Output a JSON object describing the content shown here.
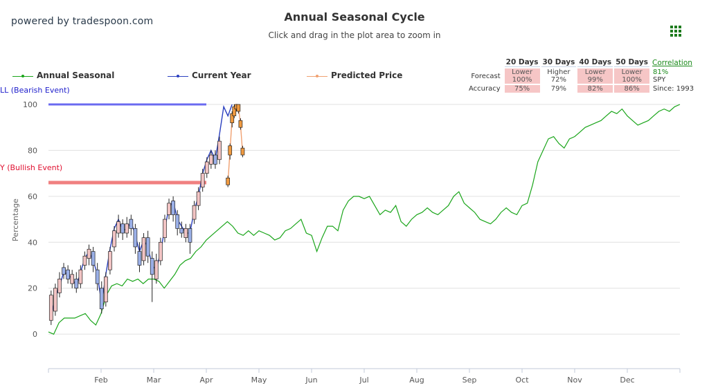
{
  "brand": "powered by tradespoon.com",
  "menu_icon": "grid-menu-icon",
  "colors": {
    "seasonal": "#1aa51a",
    "current": "#2a3fbf",
    "predicted": "#f0a070",
    "bear_line": "#6a6af0",
    "bull_line": "#f08080",
    "candle_up": "#f2c4c4",
    "candle_down": "#9bb0e8",
    "candle_pred": "#f09a40"
  },
  "forecast_table": {
    "headers": [
      "20 Days",
      "30 Days",
      "40 Days",
      "50 Days"
    ],
    "correlation_label": "Correlation",
    "forecast_label": "Forecast",
    "accuracy_label": "Accuracy",
    "forecast": [
      {
        "dir": "Lower",
        "pct": "100%"
      },
      {
        "dir": "Higher",
        "pct": "72%"
      },
      {
        "dir": "Lower",
        "pct": "99%"
      },
      {
        "dir": "Lower",
        "pct": "100%"
      }
    ],
    "accuracy": [
      "75%",
      "79%",
      "82%",
      "86%"
    ],
    "correlation_value": "81%",
    "symbol": "SPY",
    "since": "Since: 1993"
  },
  "events": {
    "bear_label": "LL (Bearish Event)",
    "bull_label": "Y (Bullish Event)"
  },
  "chart_data": {
    "type": "line",
    "title": "Annual Seasonal Cycle",
    "subtitle": "Click and drag in the plot area to zoom in",
    "ylabel": "Percentage",
    "xlabel": "",
    "ylim": [
      -15,
      100
    ],
    "yticks": [
      0,
      20,
      40,
      60,
      80,
      100
    ],
    "x_categories": [
      "Feb",
      "Mar",
      "Apr",
      "May",
      "Jun",
      "Jul",
      "Aug",
      "Sep",
      "Oct",
      "Nov",
      "Dec"
    ],
    "legend": [
      "Annual Seasonal",
      "Current Year",
      "Predicted Price"
    ],
    "grid": true,
    "series": [
      {
        "name": "Annual Seasonal",
        "x": [
          0.0,
          0.1,
          0.2,
          0.3,
          0.4,
          0.5,
          0.6,
          0.7,
          0.8,
          0.9,
          1.0,
          1.1,
          1.2,
          1.3,
          1.4,
          1.5,
          1.6,
          1.7,
          1.8,
          1.9,
          2.0,
          2.1,
          2.2,
          2.3,
          2.4,
          2.5,
          2.6,
          2.7,
          2.8,
          2.9,
          3.0,
          3.1,
          3.2,
          3.3,
          3.4,
          3.5,
          3.6,
          3.7,
          3.8,
          3.9,
          4.0,
          4.1,
          4.2,
          4.3,
          4.4,
          4.5,
          4.6,
          4.7,
          4.8,
          4.9,
          5.0,
          5.1,
          5.2,
          5.3,
          5.4,
          5.5,
          5.6,
          5.7,
          5.8,
          5.9,
          6.0,
          6.1,
          6.2,
          6.3,
          6.4,
          6.5,
          6.6,
          6.7,
          6.8,
          6.9,
          7.0,
          7.1,
          7.2,
          7.3,
          7.4,
          7.5,
          7.6,
          7.7,
          7.8,
          7.9,
          8.0,
          8.1,
          8.2,
          8.3,
          8.4,
          8.5,
          8.6,
          8.7,
          8.8,
          8.9,
          9.0,
          9.1,
          9.2,
          9.3,
          9.4,
          9.5,
          9.6,
          9.7,
          9.8,
          9.9,
          10.0,
          10.1,
          10.2,
          10.3,
          10.4,
          10.5,
          10.6,
          10.7,
          10.8,
          10.9,
          11.0,
          11.1,
          11.2,
          11.3,
          11.4,
          11.5,
          11.6,
          11.7,
          11.8,
          11.9,
          12.0
        ],
        "values": [
          1,
          0,
          5,
          7,
          7,
          7,
          8,
          9,
          6,
          4,
          9,
          17,
          21,
          22,
          21,
          24,
          23,
          24,
          22,
          24,
          24,
          23,
          20,
          23,
          26,
          30,
          32,
          33,
          36,
          38,
          41,
          43,
          45,
          47,
          49,
          47,
          44,
          43,
          45,
          43,
          45,
          44,
          43,
          41,
          42,
          45,
          46,
          48,
          50,
          44,
          43,
          36,
          42,
          47,
          47,
          45,
          54,
          58,
          60,
          60,
          59,
          60,
          56,
          52,
          54,
          53,
          56,
          49,
          47,
          50,
          52,
          53,
          55,
          53,
          52,
          54,
          56,
          60,
          62,
          57,
          55,
          53,
          50,
          49,
          48,
          50,
          53,
          55,
          53,
          52,
          56,
          57,
          65,
          75,
          80,
          85,
          86,
          83,
          81,
          85,
          86,
          88,
          90,
          91,
          92,
          93,
          95,
          97,
          96,
          98,
          95,
          93,
          91,
          92,
          93,
          95,
          97,
          98,
          97,
          99,
          100
        ]
      },
      {
        "name": "Current Year",
        "x": [
          0.05,
          0.13,
          0.21,
          0.29,
          0.37,
          0.45,
          0.53,
          0.61,
          0.69,
          0.77,
          0.85,
          0.93,
          1.01,
          1.09,
          1.17,
          1.25,
          1.33,
          1.41,
          1.49,
          1.57,
          1.65,
          1.73,
          1.81,
          1.89,
          1.97,
          2.05,
          2.13,
          2.21,
          2.29,
          2.37,
          2.45,
          2.53,
          2.61,
          2.69,
          2.77,
          2.85,
          2.93,
          3.01,
          3.09,
          3.17,
          3.25,
          3.33,
          3.41,
          3.49
        ],
        "values": [
          7,
          16,
          21,
          27,
          26,
          24,
          21,
          27,
          33,
          36,
          32,
          26,
          13,
          26,
          37,
          46,
          50,
          45,
          46,
          49,
          43,
          36,
          41,
          38,
          30,
          28,
          36,
          46,
          55,
          58,
          50,
          47,
          44,
          44,
          54,
          60,
          70,
          76,
          80,
          76,
          87,
          99,
          95,
          100
        ]
      },
      {
        "name": "Predicted Price",
        "x": [
          3.41,
          3.45,
          3.49,
          3.53,
          3.57,
          3.61,
          3.65,
          3.69
        ],
        "values": [
          66,
          80,
          94,
          98,
          100,
          99,
          91,
          79
        ]
      }
    ],
    "candles": [
      {
        "x": 0.05,
        "open": 6,
        "close": 17,
        "high": 19,
        "low": 4,
        "up": true
      },
      {
        "x": 0.13,
        "open": 10,
        "close": 20,
        "high": 22,
        "low": 8,
        "up": true
      },
      {
        "x": 0.21,
        "open": 18,
        "close": 24,
        "high": 27,
        "low": 16,
        "up": true
      },
      {
        "x": 0.29,
        "open": 29,
        "close": 26,
        "high": 31,
        "low": 24,
        "up": false
      },
      {
        "x": 0.37,
        "open": 28,
        "close": 24,
        "high": 30,
        "low": 22,
        "up": false
      },
      {
        "x": 0.45,
        "open": 22,
        "close": 26,
        "high": 28,
        "low": 20,
        "up": true
      },
      {
        "x": 0.53,
        "open": 24,
        "close": 20,
        "high": 27,
        "low": 18,
        "up": false
      },
      {
        "x": 0.61,
        "open": 22,
        "close": 28,
        "high": 30,
        "low": 20,
        "up": true
      },
      {
        "x": 0.69,
        "open": 30,
        "close": 34,
        "high": 36,
        "low": 28,
        "up": true
      },
      {
        "x": 0.77,
        "open": 33,
        "close": 37,
        "high": 39,
        "low": 30,
        "up": true
      },
      {
        "x": 0.85,
        "open": 36,
        "close": 30,
        "high": 38,
        "low": 27,
        "up": false
      },
      {
        "x": 0.93,
        "open": 28,
        "close": 22,
        "high": 31,
        "low": 19,
        "up": false
      },
      {
        "x": 1.01,
        "open": 20,
        "close": 11,
        "high": 23,
        "low": 9,
        "up": false
      },
      {
        "x": 1.09,
        "open": 14,
        "close": 25,
        "high": 27,
        "low": 12,
        "up": true
      },
      {
        "x": 1.17,
        "open": 28,
        "close": 36,
        "high": 38,
        "low": 26,
        "up": true
      },
      {
        "x": 1.25,
        "open": 38,
        "close": 45,
        "high": 47,
        "low": 36,
        "up": true
      },
      {
        "x": 1.33,
        "open": 44,
        "close": 49,
        "high": 52,
        "low": 42,
        "up": true
      },
      {
        "x": 1.41,
        "open": 48,
        "close": 44,
        "high": 50,
        "low": 41,
        "up": false
      },
      {
        "x": 1.49,
        "open": 44,
        "close": 48,
        "high": 51,
        "low": 42,
        "up": true
      },
      {
        "x": 1.57,
        "open": 50,
        "close": 46,
        "high": 52,
        "low": 43,
        "up": false
      },
      {
        "x": 1.65,
        "open": 46,
        "close": 38,
        "high": 48,
        "low": 35,
        "up": false
      },
      {
        "x": 1.73,
        "open": 36,
        "close": 30,
        "high": 40,
        "low": 27,
        "up": false
      },
      {
        "x": 1.81,
        "open": 32,
        "close": 42,
        "high": 44,
        "low": 30,
        "up": true
      },
      {
        "x": 1.89,
        "open": 42,
        "close": 34,
        "high": 45,
        "low": 31,
        "up": false
      },
      {
        "x": 1.97,
        "open": 33,
        "close": 26,
        "high": 36,
        "low": 14,
        "up": false
      },
      {
        "x": 2.05,
        "open": 24,
        "close": 32,
        "high": 35,
        "low": 22,
        "up": true
      },
      {
        "x": 2.13,
        "open": 32,
        "close": 40,
        "high": 42,
        "low": 30,
        "up": true
      },
      {
        "x": 2.21,
        "open": 42,
        "close": 50,
        "high": 52,
        "low": 40,
        "up": true
      },
      {
        "x": 2.29,
        "open": 52,
        "close": 57,
        "high": 59,
        "low": 50,
        "up": true
      },
      {
        "x": 2.37,
        "open": 58,
        "close": 52,
        "high": 60,
        "low": 49,
        "up": false
      },
      {
        "x": 2.45,
        "open": 52,
        "close": 46,
        "high": 54,
        "low": 43,
        "up": false
      },
      {
        "x": 2.53,
        "open": 46,
        "close": 44,
        "high": 49,
        "low": 42,
        "up": false
      },
      {
        "x": 2.61,
        "open": 42,
        "close": 46,
        "high": 48,
        "low": 40,
        "up": true
      },
      {
        "x": 2.69,
        "open": 46,
        "close": 40,
        "high": 48,
        "low": 35,
        "up": false
      },
      {
        "x": 2.77,
        "open": 50,
        "close": 56,
        "high": 58,
        "low": 48,
        "up": true
      },
      {
        "x": 2.85,
        "open": 56,
        "close": 62,
        "high": 64,
        "low": 54,
        "up": true
      },
      {
        "x": 2.93,
        "open": 64,
        "close": 70,
        "high": 72,
        "low": 62,
        "up": true
      },
      {
        "x": 3.01,
        "open": 70,
        "close": 75,
        "high": 77,
        "low": 68,
        "up": true
      },
      {
        "x": 3.09,
        "open": 74,
        "close": 78,
        "high": 80,
        "low": 72,
        "up": true
      },
      {
        "x": 3.17,
        "open": 78,
        "close": 74,
        "high": 80,
        "low": 72,
        "up": false
      },
      {
        "x": 3.25,
        "open": 76,
        "close": 84,
        "high": 86,
        "low": 74,
        "up": true
      }
    ],
    "predicted_candles": [
      {
        "x": 3.41,
        "open": 68,
        "close": 65,
        "high": 69,
        "low": 64
      },
      {
        "x": 3.45,
        "open": 82,
        "close": 78,
        "high": 83,
        "low": 76
      },
      {
        "x": 3.49,
        "open": 96,
        "close": 92,
        "high": 97,
        "low": 90
      },
      {
        "x": 3.53,
        "open": 99,
        "close": 95,
        "high": 100,
        "low": 94
      },
      {
        "x": 3.57,
        "open": 100,
        "close": 98,
        "high": 100,
        "low": 97
      },
      {
        "x": 3.61,
        "open": 100,
        "close": 97,
        "high": 100,
        "low": 96
      },
      {
        "x": 3.65,
        "open": 93,
        "close": 90,
        "high": 94,
        "low": 89
      },
      {
        "x": 3.69,
        "open": 81,
        "close": 78,
        "high": 82,
        "low": 77
      }
    ],
    "event_levels": {
      "bear": 100,
      "bull": 66,
      "x_end": 3.0
    }
  }
}
